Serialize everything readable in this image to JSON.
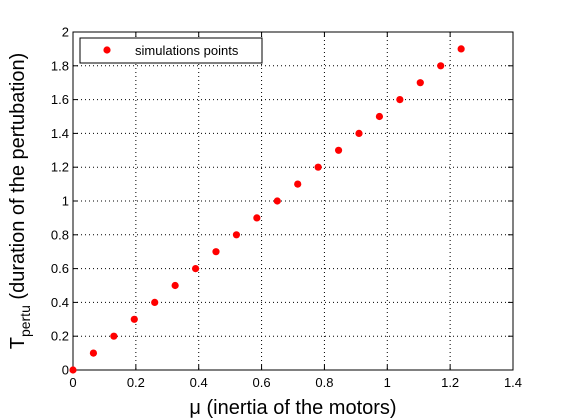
{
  "chart_data": {
    "type": "scatter",
    "xlim": [
      0,
      1.4
    ],
    "ylim": [
      0,
      2
    ],
    "x_ticks": [
      "0",
      "0.2",
      "0.4",
      "0.6",
      "0.8",
      "1",
      "1.2",
      "1.4"
    ],
    "y_ticks": [
      "0",
      "0.2",
      "0.4",
      "0.6",
      "0.8",
      "1",
      "1.2",
      "1.4",
      "1.6",
      "1.8",
      "2"
    ],
    "grid": true,
    "grid_style": "dotted",
    "legend_position": "top-left",
    "xlabel": {
      "symbol": "μ",
      "text": " (inertia of the motors)"
    },
    "ylabel": {
      "main": "T",
      "subscript": "pertu",
      "text": " (duration of the pertubation)"
    },
    "series": [
      {
        "name": "simulations points",
        "color": "#ff0000",
        "marker": "circle",
        "points": [
          [
            0,
            0
          ],
          [
            0.065,
            0.1
          ],
          [
            0.13,
            0.2
          ],
          [
            0.195,
            0.3
          ],
          [
            0.26,
            0.4
          ],
          [
            0.325,
            0.5
          ],
          [
            0.39,
            0.6
          ],
          [
            0.455,
            0.7
          ],
          [
            0.52,
            0.8
          ],
          [
            0.585,
            0.9
          ],
          [
            0.65,
            1.0
          ],
          [
            0.715,
            1.1
          ],
          [
            0.78,
            1.2
          ],
          [
            0.845,
            1.3
          ],
          [
            0.91,
            1.4
          ],
          [
            0.975,
            1.5
          ],
          [
            1.04,
            1.6
          ],
          [
            1.105,
            1.7
          ],
          [
            1.17,
            1.8
          ],
          [
            1.235,
            1.9
          ]
        ]
      }
    ]
  }
}
